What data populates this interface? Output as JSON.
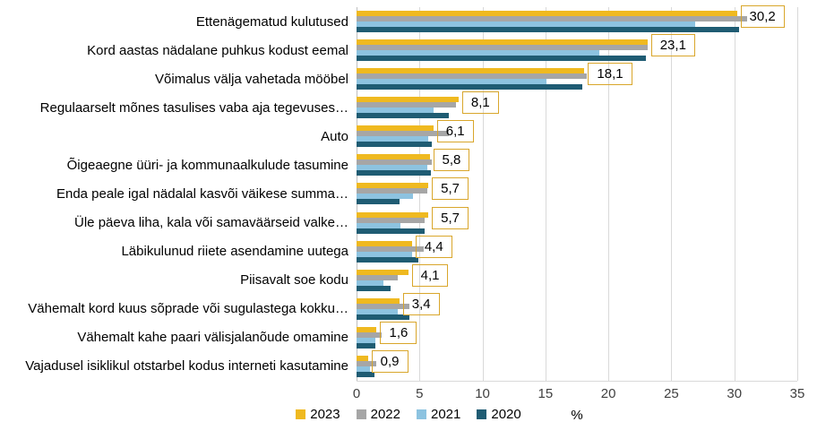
{
  "chart_data": {
    "type": "bar",
    "orientation": "horizontal",
    "title": "",
    "xlabel": "%",
    "xlim": [
      0,
      35
    ],
    "x_ticks": [
      "0",
      "5",
      "10",
      "15",
      "20",
      "25",
      "30",
      "35"
    ],
    "grid": true,
    "legend_position": "bottom",
    "categories": [
      "Ettenägematud kulutused",
      "Kord aastas nädalane puhkus kodust eemal",
      "Võimalus välja vahetada mööbel",
      "Regulaarselt mõnes tasulises vaba aja tegevuses…",
      "Auto",
      "Õigeaegne üüri- ja kommunaalkulude tasumine",
      "Enda peale igal nädalal kasvõi väikese summa…",
      "Üle päeva liha, kala või samaväärseid valke…",
      "Läbikulunud riiete asendamine uutega",
      "Piisavalt soe kodu",
      "Vähemalt kord kuus sõprade või sugulastega kokku…",
      "Vähemalt kahe paari välisjalanõude omamine",
      "Vajadusel isiklikul otstarbel kodus interneti kasutamine"
    ],
    "series": [
      {
        "name": "2023",
        "color": "#EFB920",
        "values": [
          30.2,
          23.1,
          18.1,
          8.1,
          6.1,
          5.8,
          5.7,
          5.7,
          4.4,
          4.1,
          3.4,
          1.6,
          0.9
        ]
      },
      {
        "name": "2022",
        "color": "#A6A6A6",
        "values": [
          31.0,
          23.1,
          18.3,
          7.9,
          7.3,
          6.0,
          5.6,
          5.4,
          5.3,
          3.3,
          4.2,
          2.0,
          1.6
        ]
      },
      {
        "name": "2021",
        "color": "#8DC3E0",
        "values": [
          26.9,
          19.3,
          15.1,
          6.1,
          5.7,
          5.6,
          4.5,
          3.5,
          4.4,
          2.1,
          3.3,
          1.5,
          1.1
        ]
      },
      {
        "name": "2020",
        "color": "#1F5C73",
        "values": [
          30.4,
          23.0,
          17.9,
          7.3,
          6.0,
          5.9,
          3.4,
          5.4,
          4.9,
          2.7,
          4.2,
          1.5,
          1.4
        ]
      }
    ],
    "data_labels": [
      "30,2",
      "23,1",
      "18,1",
      "8,1",
      "6,1",
      "5,8",
      "5,7",
      "5,7",
      "4,4",
      "4,1",
      "3,4",
      "1,6",
      "0,9"
    ],
    "data_label_series": "2023",
    "colors": {
      "gridline": "#D9D9D9",
      "axis_line": "#BFBFBF",
      "label_box_border": "#D9A62B",
      "tick_text": "#404040",
      "category_text": "#000000"
    }
  }
}
